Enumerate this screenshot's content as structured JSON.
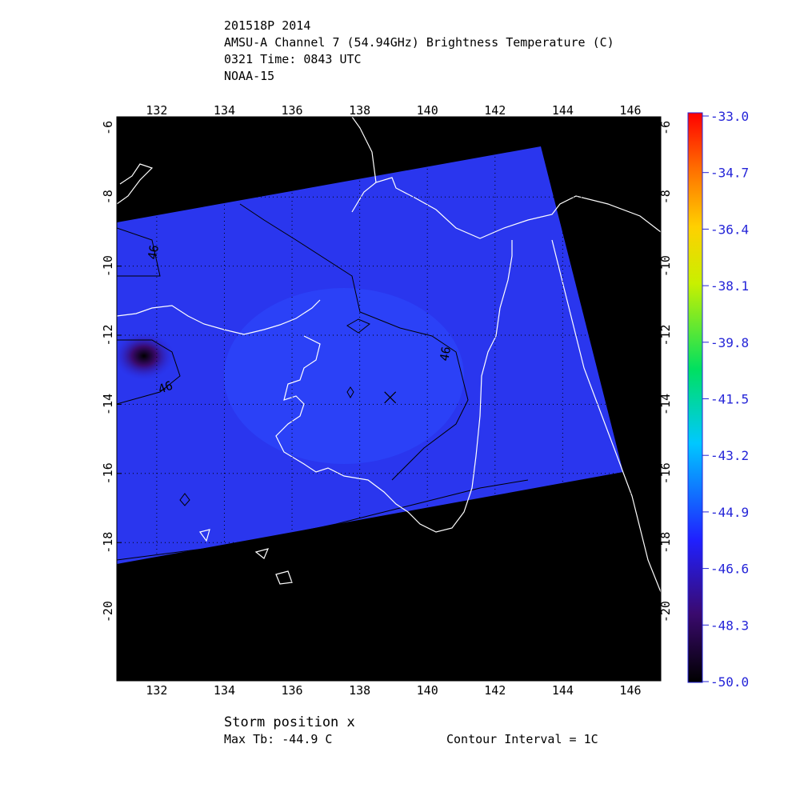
{
  "header": {
    "lines": [
      "201518P 2014",
      "AMSU-A Channel 7 (54.94GHz) Brightness Temperature (C)",
      "0321 Time: 0843 UTC",
      "NOAA-15"
    ]
  },
  "map": {
    "xlim": [
      130.82,
      146.9
    ],
    "ylim": [
      -5.68,
      -22.0
    ],
    "xticks": [
      132,
      134,
      136,
      138,
      140,
      142,
      144,
      146
    ],
    "yticks": [
      -6,
      -8,
      -10,
      -12,
      -14,
      -16,
      -18,
      -20
    ],
    "storm": {
      "lon": 138.9,
      "lat": -13.8
    },
    "contour_label": "46"
  },
  "colorbar": {
    "clim": [
      -50.0,
      -33.0
    ],
    "ticks": [
      {
        "value": -33.0,
        "label": "-33.0"
      },
      {
        "value": -34.7,
        "label": "-34.7"
      },
      {
        "value": -36.4,
        "label": "-36.4"
      },
      {
        "value": -38.1,
        "label": "-38.1"
      },
      {
        "value": -39.8,
        "label": "-39.8"
      },
      {
        "value": -41.5,
        "label": "-41.5"
      },
      {
        "value": -43.2,
        "label": "-43.2"
      },
      {
        "value": -44.9,
        "label": "-44.9"
      },
      {
        "value": -46.6,
        "label": "-46.6"
      },
      {
        "value": -48.3,
        "label": "-48.3"
      },
      {
        "value": -50.0,
        "label": "-50.0"
      }
    ]
  },
  "footer": {
    "storm_position": "Storm position x",
    "max_tb": "Max Tb: -44.9    C",
    "contour_interval": "Contour Interval = 1C"
  }
}
